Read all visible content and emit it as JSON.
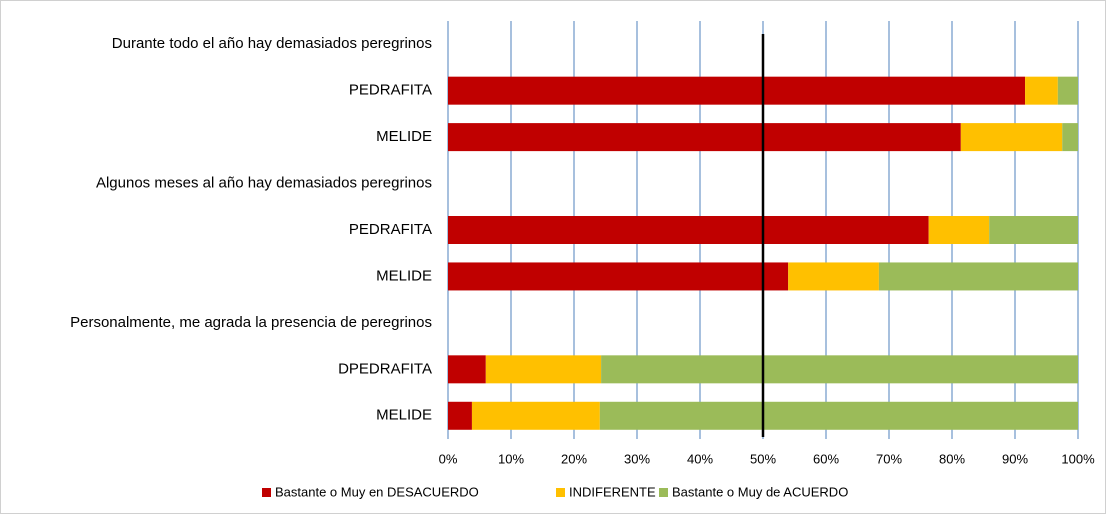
{
  "chart_data": {
    "type": "stacked_barh",
    "categories": [
      "Durante todo el año hay demasiados peregrinos",
      "PEDRAFITA",
      "MELIDE",
      "Algunos meses al año hay demasiados peregrinos",
      "PEDRAFITA",
      "MELIDE",
      "Personalmente, me agrada la presencia de peregrinos",
      "DPEDRAFITA",
      "MELIDE"
    ],
    "series": [
      {
        "name": "Bastante o Muy en DESACUERDO",
        "color": "#c00000",
        "values": [
          null,
          91.6,
          81.4,
          null,
          76.3,
          54.0,
          null,
          6.0,
          3.8
        ]
      },
      {
        "name": "INDIFERENTE",
        "color": "#ffc000",
        "values": [
          null,
          5.2,
          16.1,
          null,
          9.6,
          14.4,
          null,
          18.3,
          20.3
        ]
      },
      {
        "name": "Bastante o Muy de ACUERDO",
        "color": "#9bbb59",
        "values": [
          null,
          3.2,
          2.5,
          null,
          14.1,
          31.6,
          null,
          75.7,
          75.9
        ]
      }
    ],
    "xlim": [
      0,
      100
    ],
    "xticks": [
      {
        "value": 0,
        "label": "0%"
      },
      {
        "value": 10,
        "label": "10%"
      },
      {
        "value": 20,
        "label": "20%"
      },
      {
        "value": 30,
        "label": "30%"
      },
      {
        "value": 40,
        "label": "40%"
      },
      {
        "value": 50,
        "label": "50%"
      },
      {
        "value": 60,
        "label": "60%"
      },
      {
        "value": 70,
        "label": "70%"
      },
      {
        "value": 80,
        "label": "80%"
      },
      {
        "value": 90,
        "label": "90%"
      },
      {
        "value": 100,
        "label": "100%"
      }
    ],
    "grid": true,
    "grid_color": "#4f81bd",
    "legend": "bottom",
    "reference_line": 50
  }
}
